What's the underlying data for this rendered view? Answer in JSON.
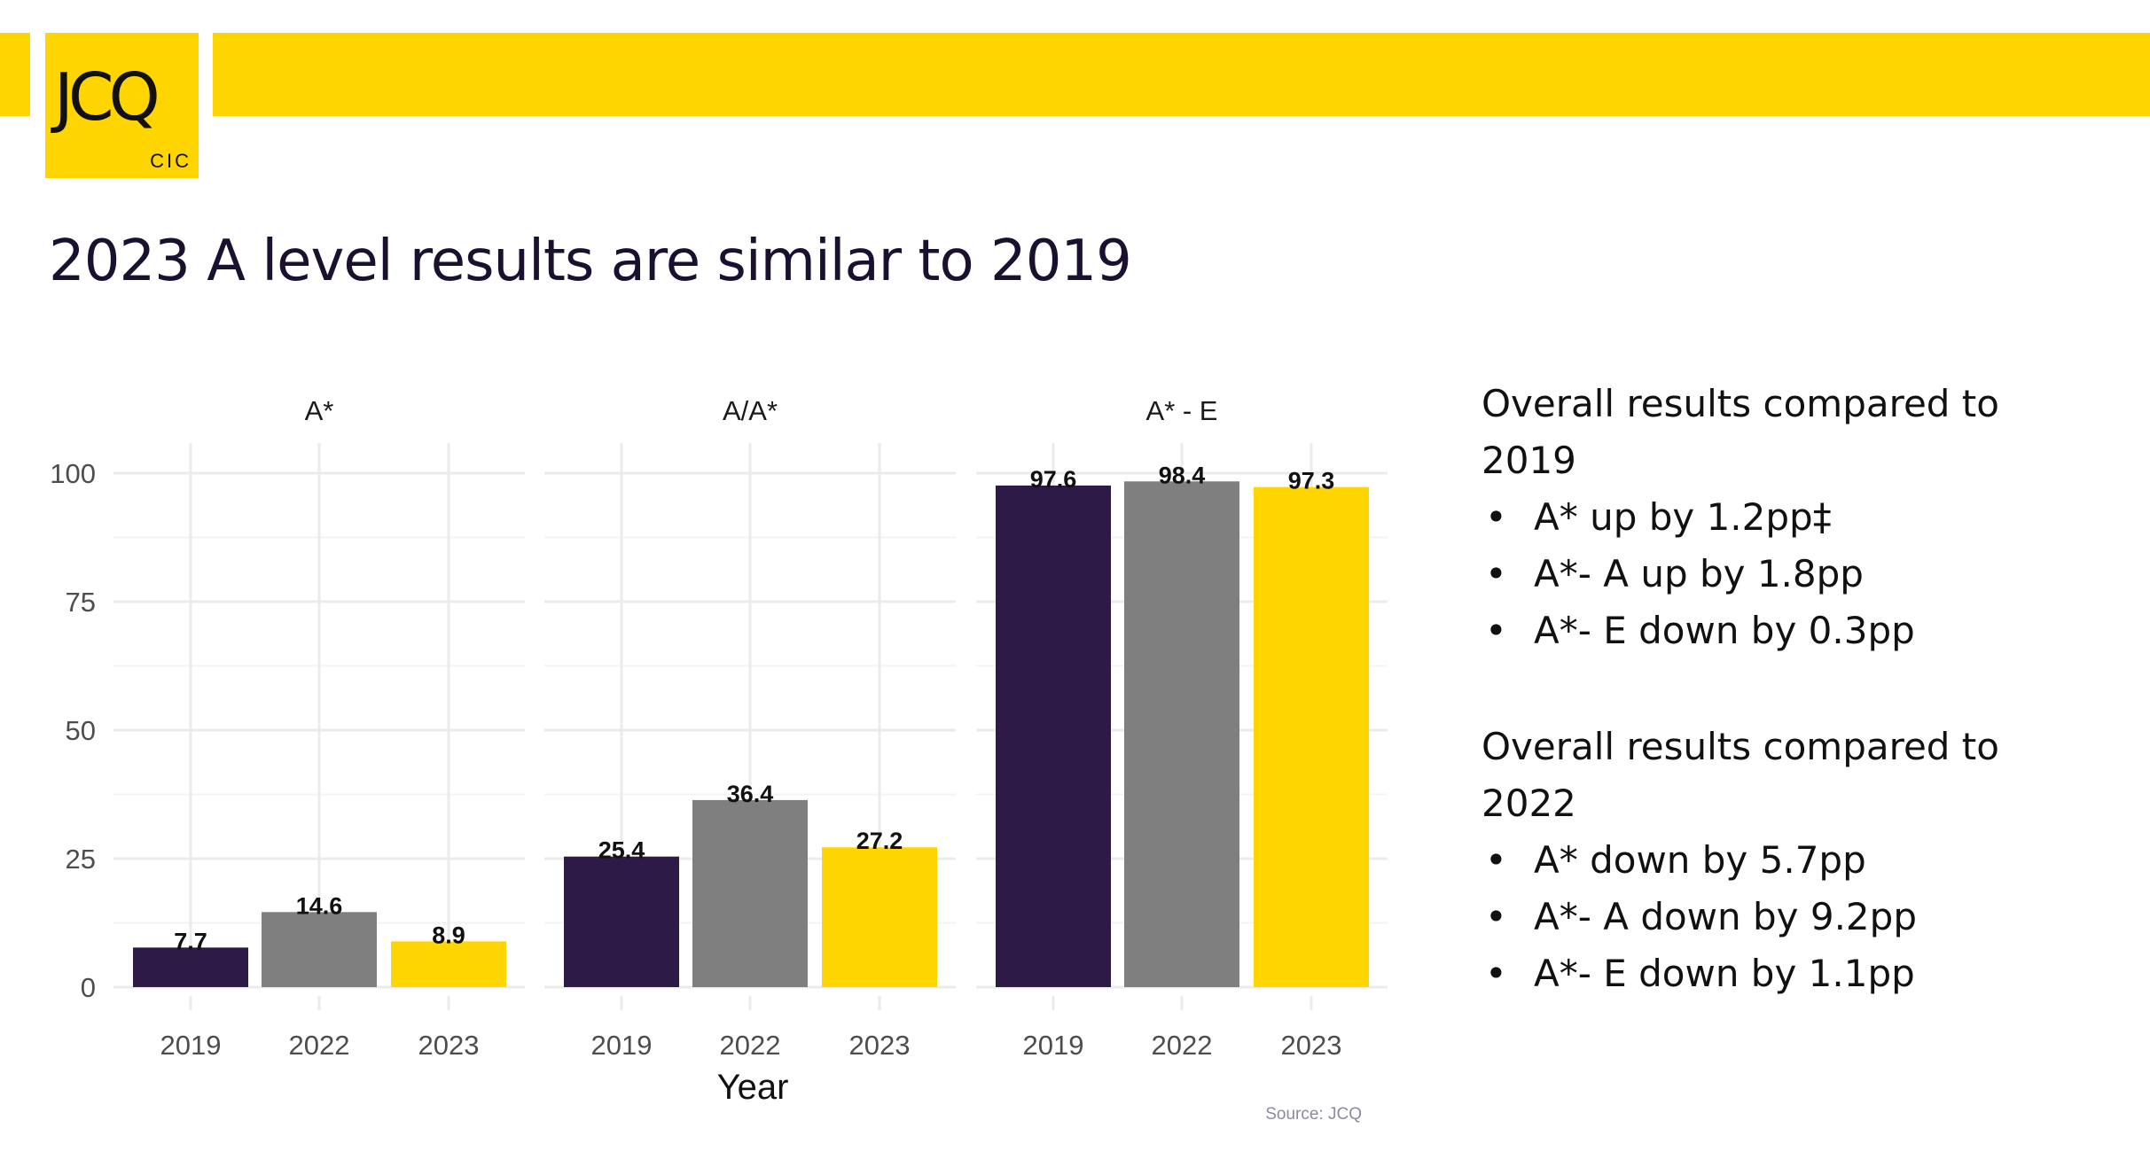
{
  "logo": {
    "text": "JCQ",
    "sub": "CIC"
  },
  "title": "2023 A level results are similar to 2019",
  "colors": {
    "brand": "#ffd500",
    "y2019": "#2e1a47",
    "y2022": "#7f7f7f",
    "y2023": "#ffd500"
  },
  "chart_data": {
    "type": "bar",
    "facets": [
      "A*",
      "A/A*",
      "A* - E"
    ],
    "categories": [
      "2019",
      "2022",
      "2023"
    ],
    "values": [
      [
        7.7,
        14.6,
        8.9
      ],
      [
        25.4,
        36.4,
        27.2
      ],
      [
        97.6,
        98.4,
        97.3
      ]
    ],
    "labels": [
      [
        "7.7",
        "14.6",
        "8.9"
      ],
      [
        "25.4",
        "36.4",
        "27.2"
      ],
      [
        "97.6",
        "98.4",
        "97.3"
      ]
    ],
    "xlabel": "Year",
    "ylabel": "",
    "ylim": [
      0,
      100
    ],
    "yticks": [
      "0",
      "25",
      "50",
      "75",
      "100"
    ],
    "grid": true,
    "source": "Source: JCQ"
  },
  "summary": {
    "block1": {
      "heading1": "Overall results compared to",
      "heading2": "2019",
      "bullets": [
        "A* up by 1.2pp‡",
        "A*- A up by 1.8pp",
        "A*- E down by 0.3pp"
      ]
    },
    "block2": {
      "heading1": "Overall results compared to",
      "heading2": "2022",
      "bullets": [
        "A* down by 5.7pp",
        "A*- A down by 9.2pp",
        "A*- E down by 1.1pp"
      ]
    }
  }
}
